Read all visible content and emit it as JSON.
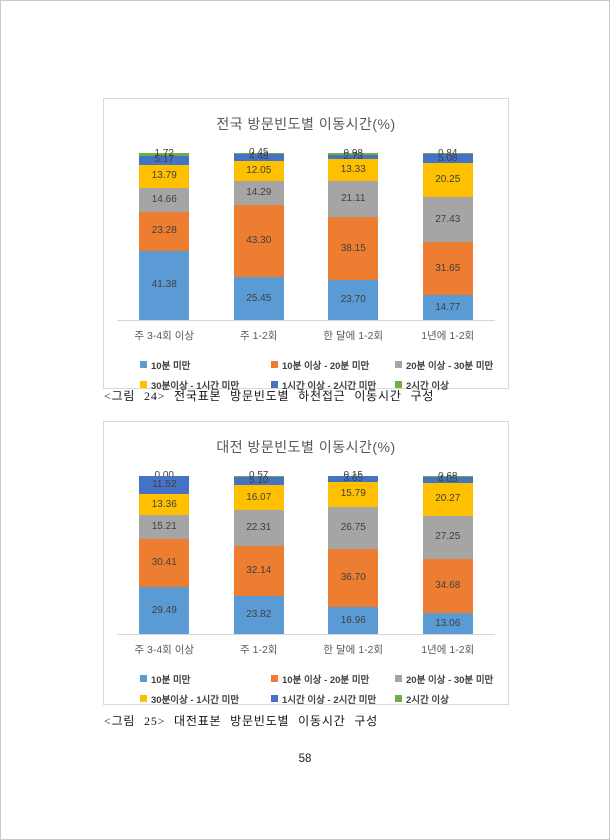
{
  "page": {
    "number": "58"
  },
  "figures": [
    {
      "caption": "<그림 24> 전국표본 방문빈도별 하천접근 이동시간 구성"
    },
    {
      "caption": "<그림 25> 대전표본 방문빈도별 이동시간 구성"
    }
  ],
  "chart_data": [
    {
      "type": "bar",
      "stacked": true,
      "title": "전국 방문빈도별 이동시간(%)",
      "xlabel": "",
      "ylabel": "",
      "ylim": [
        0,
        100
      ],
      "grid": false,
      "legend_position": "bottom",
      "categories": [
        "주 3-4회 이상",
        "주 1-2회",
        "한 달에 1-2회",
        "1년에 1-2회"
      ],
      "series": [
        {
          "name": "10분 미만",
          "color": "#5B9BD5",
          "values": [
            41.38,
            25.45,
            23.7,
            14.77
          ]
        },
        {
          "name": "10분 이상 - 20분 미만",
          "color": "#ED7D31",
          "values": [
            23.28,
            43.3,
            38.15,
            31.65
          ]
        },
        {
          "name": "20분 이상 - 30분 미만",
          "color": "#A5A5A5",
          "values": [
            14.66,
            14.29,
            21.11,
            27.43
          ]
        },
        {
          "name": "30분이상 - 1시간 미만",
          "color": "#FFC000",
          "values": [
            13.79,
            12.05,
            13.33,
            20.25
          ]
        },
        {
          "name": "1시간 이상 - 2시간 미만",
          "color": "#4472C4",
          "values": [
            5.17,
            4.48,
            2.73,
            5.08
          ]
        },
        {
          "name": "2시간 이상",
          "color": "#70AD47",
          "values": [
            1.72,
            0.45,
            0.98,
            0.84
          ]
        }
      ]
    },
    {
      "type": "bar",
      "stacked": true,
      "title": "대전 방문빈도별 이동시간(%)",
      "xlabel": "",
      "ylabel": "",
      "ylim": [
        0,
        100
      ],
      "grid": false,
      "legend_position": "bottom",
      "categories": [
        "주 3-4회 이상",
        "주 1-2회",
        "한 달에 1-2회",
        "1년에 1-2회"
      ],
      "series": [
        {
          "name": "10분 미만",
          "color": "#5B9BD5",
          "values": [
            29.49,
            23.82,
            16.96,
            13.06
          ]
        },
        {
          "name": "10분 이상 - 20분 미만",
          "color": "#ED7D31",
          "values": [
            30.41,
            32.14,
            36.7,
            34.68
          ]
        },
        {
          "name": "20분 이상 - 30분 미만",
          "color": "#A5A5A5",
          "values": [
            15.21,
            22.31,
            26.75,
            27.25
          ]
        },
        {
          "name": "30분이상 - 1시간 미만",
          "color": "#FFC000",
          "values": [
            13.36,
            16.07,
            15.79,
            20.27
          ]
        },
        {
          "name": "1시간 이상 - 2시간 미만",
          "color": "#4472C4",
          "values": [
            11.52,
            5.1,
            3.65,
            4.05
          ]
        },
        {
          "name": "2시간 이상",
          "color": "#70AD47",
          "values": [
            0.0,
            0.57,
            0.15,
            0.68
          ]
        }
      ]
    }
  ]
}
